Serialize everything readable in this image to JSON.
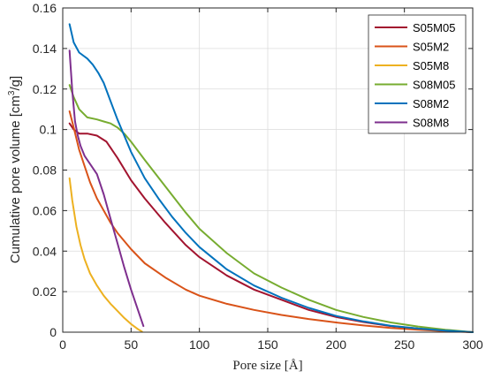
{
  "chart_data": {
    "type": "line",
    "xlabel": "Pore size [Å]",
    "ylabel_prefix": "Cumulative pore volume [cm",
    "ylabel_sup": "3",
    "ylabel_suffix": "/g]",
    "xlim": [
      0,
      300
    ],
    "ylim": [
      0,
      0.16
    ],
    "xticks": [
      0,
      50,
      100,
      150,
      200,
      250,
      300
    ],
    "yticks": [
      0,
      0.02,
      0.04,
      0.06,
      0.08,
      0.1,
      0.12,
      0.14,
      0.16
    ],
    "grid": true,
    "legend_position": "top-right",
    "series": [
      {
        "name": "S05M05",
        "color": "#a2142f",
        "x": [
          5,
          8,
          12,
          18,
          25,
          32,
          40,
          50,
          60,
          75,
          90,
          100,
          120,
          140,
          160,
          180,
          200,
          220,
          240,
          260,
          280,
          300
        ],
        "y": [
          0.103,
          0.1,
          0.098,
          0.098,
          0.097,
          0.094,
          0.086,
          0.075,
          0.066,
          0.054,
          0.043,
          0.037,
          0.028,
          0.021,
          0.016,
          0.011,
          0.0075,
          0.005,
          0.003,
          0.0018,
          0.0008,
          0.0
        ]
      },
      {
        "name": "S05M2",
        "color": "#d95319",
        "x": [
          5,
          8,
          12,
          16,
          20,
          25,
          30,
          35,
          40,
          50,
          60,
          75,
          90,
          100,
          120,
          140,
          160,
          180,
          200,
          220,
          240,
          260,
          280,
          300
        ],
        "y": [
          0.109,
          0.101,
          0.09,
          0.082,
          0.074,
          0.066,
          0.06,
          0.054,
          0.049,
          0.041,
          0.034,
          0.027,
          0.021,
          0.018,
          0.014,
          0.011,
          0.0085,
          0.0065,
          0.0048,
          0.0033,
          0.0021,
          0.0012,
          0.0005,
          0.0
        ]
      },
      {
        "name": "S05M8",
        "color": "#edb120",
        "x": [
          5,
          7,
          10,
          13,
          16,
          20,
          25,
          30,
          35,
          40,
          45,
          50,
          55,
          58
        ],
        "y": [
          0.076,
          0.065,
          0.052,
          0.043,
          0.036,
          0.029,
          0.023,
          0.018,
          0.014,
          0.0105,
          0.007,
          0.004,
          0.0015,
          0.0003
        ]
      },
      {
        "name": "S08M05",
        "color": "#77ac30",
        "x": [
          5,
          8,
          12,
          18,
          25,
          30,
          35,
          40,
          45,
          50,
          60,
          75,
          90,
          100,
          120,
          140,
          160,
          180,
          200,
          220,
          240,
          260,
          280,
          300
        ],
        "y": [
          0.122,
          0.116,
          0.11,
          0.106,
          0.105,
          0.104,
          0.103,
          0.101,
          0.098,
          0.094,
          0.085,
          0.072,
          0.059,
          0.051,
          0.039,
          0.029,
          0.022,
          0.016,
          0.011,
          0.0075,
          0.0048,
          0.0028,
          0.0012,
          0.0
        ]
      },
      {
        "name": "S08M2",
        "color": "#0072bd",
        "x": [
          5,
          8,
          12,
          18,
          22,
          26,
          30,
          35,
          40,
          45,
          50,
          60,
          70,
          80,
          90,
          100,
          120,
          140,
          160,
          180,
          200,
          220,
          240,
          260,
          280,
          300
        ],
        "y": [
          0.152,
          0.143,
          0.138,
          0.135,
          0.132,
          0.128,
          0.123,
          0.114,
          0.105,
          0.097,
          0.089,
          0.076,
          0.066,
          0.057,
          0.049,
          0.042,
          0.031,
          0.023,
          0.017,
          0.012,
          0.008,
          0.0053,
          0.0032,
          0.0018,
          0.0008,
          0.0
        ]
      },
      {
        "name": "S08M8",
        "color": "#7e2f8e",
        "x": [
          5,
          7,
          9,
          11,
          13,
          16,
          20,
          25,
          30,
          35,
          40,
          45,
          50,
          55,
          59
        ],
        "y": [
          0.139,
          0.119,
          0.104,
          0.097,
          0.092,
          0.087,
          0.083,
          0.078,
          0.068,
          0.056,
          0.044,
          0.032,
          0.021,
          0.011,
          0.003
        ]
      }
    ]
  }
}
